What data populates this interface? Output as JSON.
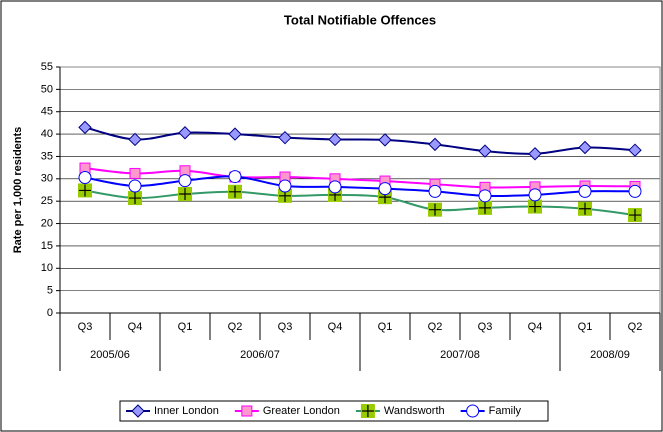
{
  "chart_data": {
    "type": "line",
    "title": "Total Notifiable Offences",
    "y_label": "Rate per 1,000 residents",
    "categories": [
      "Q3",
      "Q4",
      "Q1",
      "Q2",
      "Q3",
      "Q4",
      "Q1",
      "Q2",
      "Q3",
      "Q4",
      "Q1",
      "Q2"
    ],
    "category_groups": [
      {
        "name": "2005/06",
        "count": 2
      },
      {
        "name": "2006/07",
        "count": 4
      },
      {
        "name": "2007/08",
        "count": 4
      },
      {
        "name": "2008/09",
        "count": 2
      }
    ],
    "series": [
      {
        "name": "Inner London",
        "color": "#000080",
        "marker_color": "#9999ff",
        "marker": "diamond",
        "values": [
          41.5,
          38.8,
          40.3,
          40,
          39.2,
          38.8,
          38.7,
          37.7,
          36.2,
          35.6,
          37,
          36.4
        ]
      },
      {
        "name": "Greater London",
        "color": "#ff00ff",
        "marker_color": "#ff99cc",
        "marker": "square",
        "values": [
          32.4,
          31.2,
          31.8,
          30.4,
          30.4,
          30,
          29.5,
          28.8,
          28.1,
          28.2,
          28.4,
          28.3
        ]
      },
      {
        "name": "Wandsworth",
        "color": "#339966",
        "marker_color": "#99cc00",
        "marker": "plus-square",
        "values": [
          27.4,
          25.7,
          26.6,
          27.1,
          26.2,
          26.4,
          25.9,
          23.1,
          23.5,
          23.8,
          23.3,
          21.9
        ]
      },
      {
        "name": "Family",
        "color": "#0000ff",
        "marker_color": "#ffffff",
        "marker": "circle",
        "values": [
          30.3,
          28.4,
          29.6,
          30.5,
          28.4,
          28.2,
          27.8,
          27.2,
          26.2,
          26.4,
          27.2,
          27.2
        ]
      }
    ],
    "ylim": [
      0,
      55
    ],
    "yticks": [
      0,
      5,
      10,
      15,
      20,
      25,
      30,
      35,
      40,
      45,
      50,
      55
    ],
    "grid": true,
    "legend": "bottom"
  }
}
